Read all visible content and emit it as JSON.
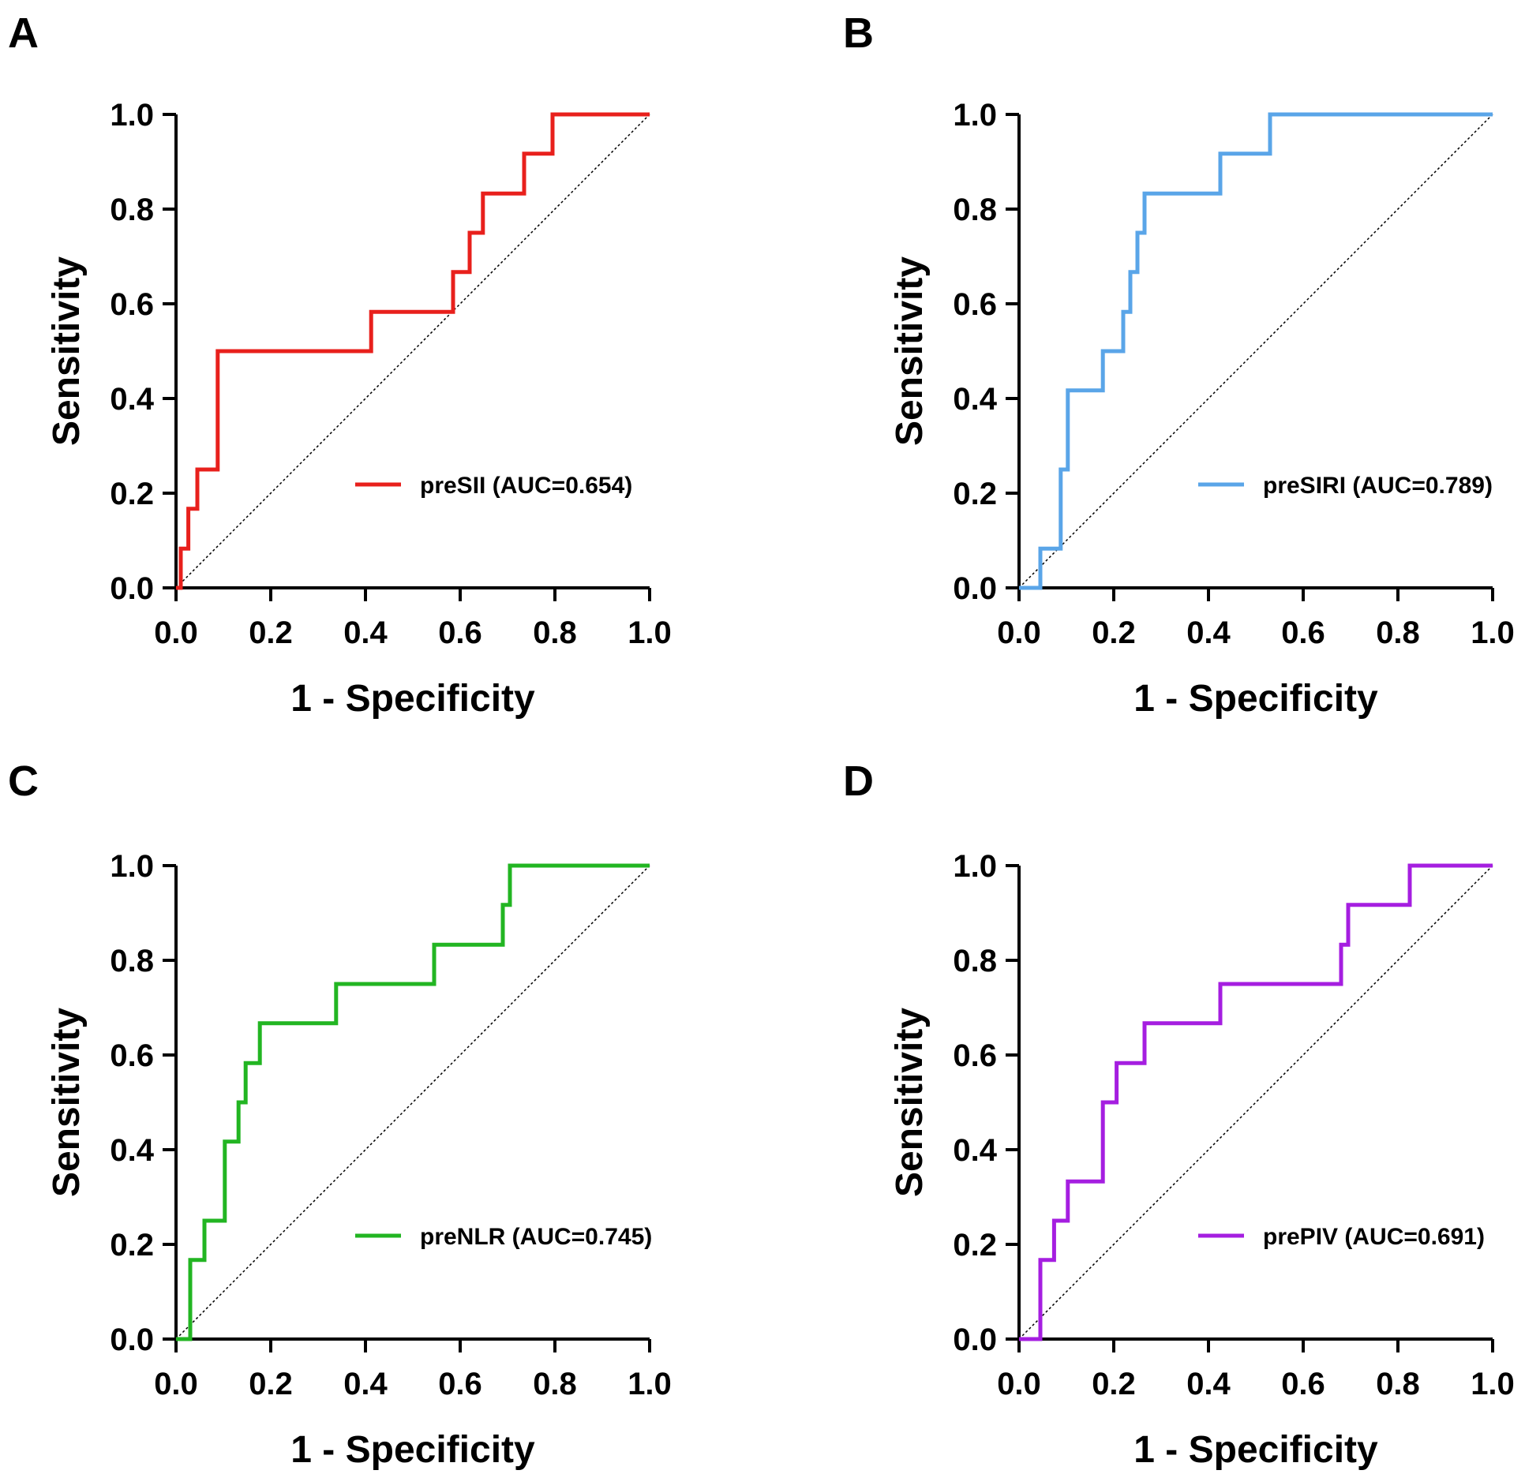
{
  "chart_data": [
    {
      "panel": "A",
      "type": "line",
      "subtype": "roc-step",
      "xlabel": "1 - Specificity",
      "ylabel": "Sensitivity",
      "xlim": [
        0,
        1
      ],
      "ylim": [
        0,
        1
      ],
      "xticks": [
        "0.0",
        "0.2",
        "0.4",
        "0.6",
        "0.8",
        "1.0"
      ],
      "yticks": [
        "0.0",
        "0.2",
        "0.4",
        "0.6",
        "0.8",
        "1.0"
      ],
      "legend_position": "lower-right",
      "series": [
        {
          "name": "preSII (AUC=0.654)",
          "color": "#e8201c",
          "x": [
            0.0,
            0.01,
            0.01,
            0.026,
            0.026,
            0.045,
            0.045,
            0.088,
            0.088,
            0.412,
            0.412,
            0.585,
            0.585,
            0.62,
            0.62,
            0.648,
            0.648,
            0.735,
            0.735,
            0.795,
            0.795,
            1.0
          ],
          "y": [
            0.0,
            0.0,
            0.083,
            0.083,
            0.167,
            0.167,
            0.25,
            0.25,
            0.5,
            0.5,
            0.583,
            0.583,
            0.667,
            0.667,
            0.75,
            0.75,
            0.833,
            0.833,
            0.917,
            0.917,
            1.0,
            1.0
          ]
        }
      ]
    },
    {
      "panel": "B",
      "type": "line",
      "subtype": "roc-step",
      "xlabel": "1 - Specificity",
      "ylabel": "Sensitivity",
      "xlim": [
        0,
        1
      ],
      "ylim": [
        0,
        1
      ],
      "xticks": [
        "0.0",
        "0.2",
        "0.4",
        "0.6",
        "0.8",
        "1.0"
      ],
      "yticks": [
        "0.0",
        "0.2",
        "0.4",
        "0.6",
        "0.8",
        "1.0"
      ],
      "legend_position": "lower-right",
      "series": [
        {
          "name": "preSIRI (AUC=0.789)",
          "color": "#5aa5e8",
          "x": [
            0.0,
            0.045,
            0.045,
            0.088,
            0.088,
            0.103,
            0.103,
            0.177,
            0.177,
            0.22,
            0.22,
            0.235,
            0.235,
            0.25,
            0.25,
            0.265,
            0.265,
            0.425,
            0.425,
            0.53,
            0.53,
            1.0
          ],
          "y": [
            0.0,
            0.0,
            0.083,
            0.083,
            0.25,
            0.25,
            0.417,
            0.417,
            0.5,
            0.5,
            0.583,
            0.583,
            0.667,
            0.667,
            0.75,
            0.75,
            0.833,
            0.833,
            0.917,
            0.917,
            1.0,
            1.0
          ]
        }
      ]
    },
    {
      "panel": "C",
      "type": "line",
      "subtype": "roc-step",
      "xlabel": "1 - Specificity",
      "ylabel": "Sensitivity",
      "xlim": [
        0,
        1
      ],
      "ylim": [
        0,
        1
      ],
      "xticks": [
        "0.0",
        "0.2",
        "0.4",
        "0.6",
        "0.8",
        "1.0"
      ],
      "yticks": [
        "0.0",
        "0.2",
        "0.4",
        "0.6",
        "0.8",
        "1.0"
      ],
      "legend_position": "lower-right",
      "series": [
        {
          "name": "preNLR (AUC=0.745)",
          "color": "#22b522",
          "x": [
            0.0,
            0.03,
            0.03,
            0.06,
            0.06,
            0.103,
            0.103,
            0.132,
            0.132,
            0.147,
            0.147,
            0.177,
            0.177,
            0.338,
            0.338,
            0.545,
            0.545,
            0.69,
            0.69,
            0.705,
            0.705,
            1.0
          ],
          "y": [
            0.0,
            0.0,
            0.167,
            0.167,
            0.25,
            0.25,
            0.417,
            0.417,
            0.5,
            0.5,
            0.583,
            0.583,
            0.667,
            0.667,
            0.75,
            0.75,
            0.833,
            0.833,
            0.917,
            0.917,
            1.0,
            1.0
          ]
        }
      ]
    },
    {
      "panel": "D",
      "type": "line",
      "subtype": "roc-step",
      "xlabel": "1 - Specificity",
      "ylabel": "Sensitivity",
      "xlim": [
        0,
        1
      ],
      "ylim": [
        0,
        1
      ],
      "xticks": [
        "0.0",
        "0.2",
        "0.4",
        "0.6",
        "0.8",
        "1.0"
      ],
      "yticks": [
        "0.0",
        "0.2",
        "0.4",
        "0.6",
        "0.8",
        "1.0"
      ],
      "legend_position": "lower-right",
      "series": [
        {
          "name": "prePIV (AUC=0.691)",
          "color": "#a51ee0",
          "x": [
            0.0,
            0.045,
            0.045,
            0.074,
            0.074,
            0.103,
            0.103,
            0.177,
            0.177,
            0.206,
            0.206,
            0.265,
            0.265,
            0.425,
            0.425,
            0.68,
            0.68,
            0.695,
            0.695,
            0.825,
            0.825,
            1.0
          ],
          "y": [
            0.0,
            0.0,
            0.167,
            0.167,
            0.25,
            0.25,
            0.333,
            0.333,
            0.5,
            0.5,
            0.583,
            0.583,
            0.667,
            0.667,
            0.75,
            0.75,
            0.833,
            0.833,
            0.917,
            0.917,
            1.0,
            1.0
          ]
        }
      ]
    }
  ]
}
